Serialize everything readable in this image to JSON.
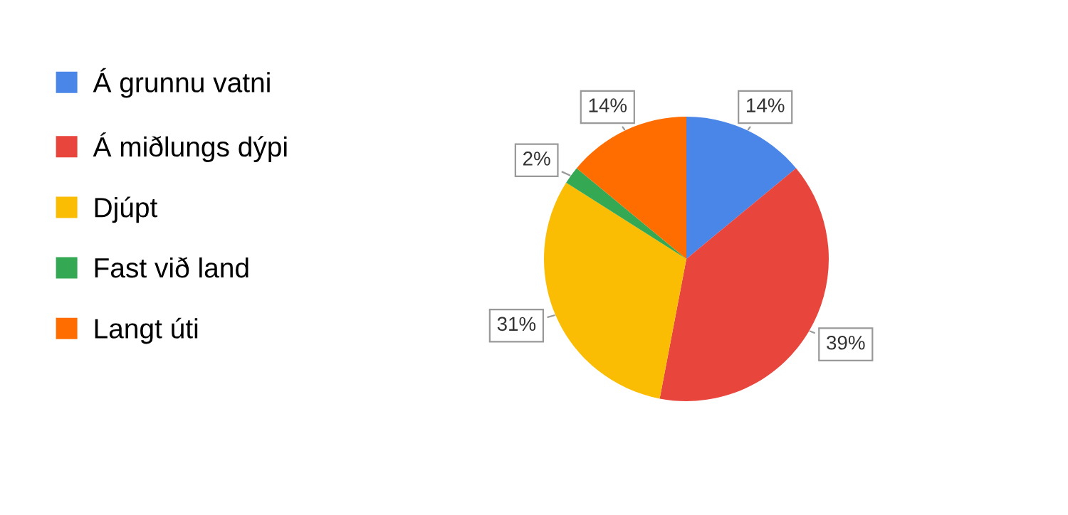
{
  "chart_data": {
    "type": "pie",
    "categories": [
      "Á grunnu vatni",
      "Á miðlungs dýpi",
      "Djúpt",
      "Fast við land",
      "Langt úti"
    ],
    "values": [
      14,
      39,
      31,
      2,
      14
    ],
    "colors": [
      "#4a86e8",
      "#e8453c",
      "#fbbc04",
      "#34a853",
      "#ff6d01"
    ],
    "value_labels": [
      "14%",
      "39%",
      "31%",
      "2%",
      "14%"
    ],
    "legend": "left"
  }
}
